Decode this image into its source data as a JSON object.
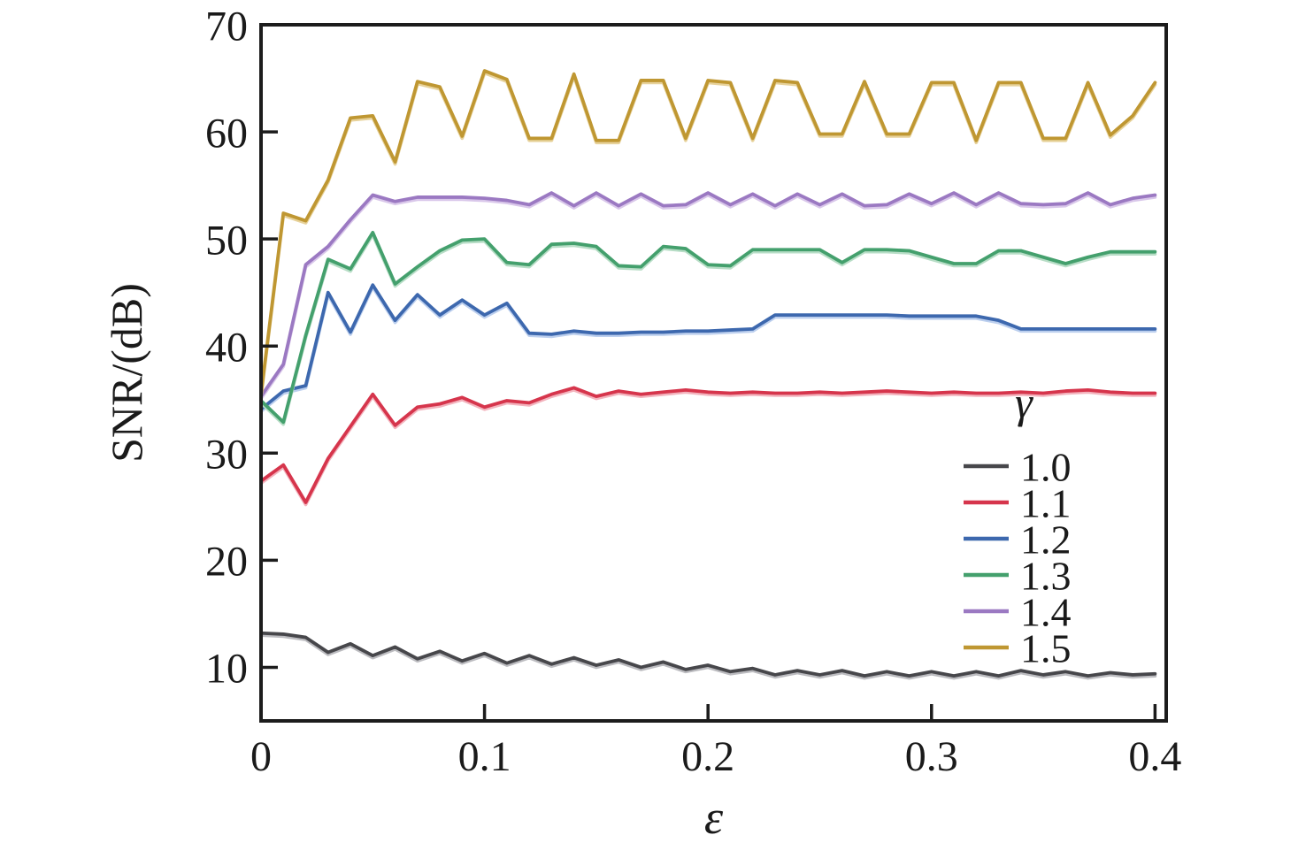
{
  "figure": {
    "background": "#ffffff"
  },
  "chart_data": {
    "type": "line",
    "title": "",
    "xlabel": "ε",
    "ylabel": "SNR/(dB)",
    "xlim": [
      0,
      0.405
    ],
    "ylim": [
      5,
      70
    ],
    "x_ticks": [
      0,
      0.1,
      0.2,
      0.3,
      0.4
    ],
    "x_tick_labels": [
      "0",
      "0.1",
      "0.2",
      "0.3",
      "0.4"
    ],
    "y_ticks": [
      10,
      20,
      30,
      40,
      50,
      60,
      70
    ],
    "y_tick_labels": [
      "10",
      "20",
      "30",
      "40",
      "50",
      "60",
      "70"
    ],
    "grid": false,
    "axis_color": "#1c1c1c",
    "legend_title": "γ",
    "legend_position": "inside-right",
    "x": [
      0,
      0.01,
      0.02,
      0.03,
      0.04,
      0.05,
      0.06,
      0.07,
      0.08,
      0.09,
      0.1,
      0.11,
      0.12,
      0.13,
      0.14,
      0.15,
      0.16,
      0.17,
      0.18,
      0.19,
      0.2,
      0.21,
      0.22,
      0.23,
      0.24,
      0.25,
      0.26,
      0.27,
      0.28,
      0.29,
      0.3,
      0.31,
      0.32,
      0.33,
      0.34,
      0.35,
      0.36,
      0.37,
      0.38,
      0.39,
      0.4
    ],
    "series": [
      {
        "name": "1.0",
        "color": "#47474b",
        "halo": "#bcbcc0",
        "values": [
          13.2,
          13.1,
          12.8,
          11.4,
          12.2,
          11.1,
          11.9,
          10.8,
          11.5,
          10.6,
          11.3,
          10.4,
          11.1,
          10.3,
          10.9,
          10.2,
          10.7,
          10.0,
          10.5,
          9.8,
          10.2,
          9.6,
          9.9,
          9.3,
          9.7,
          9.3,
          9.7,
          9.2,
          9.6,
          9.2,
          9.6,
          9.2,
          9.6,
          9.2,
          9.7,
          9.3,
          9.6,
          9.2,
          9.5,
          9.3,
          9.4
        ]
      },
      {
        "name": "1.1",
        "color": "#d6354c",
        "halo": "#f3b3bd",
        "values": [
          27.4,
          28.9,
          25.4,
          29.5,
          32.5,
          35.5,
          32.6,
          34.3,
          34.6,
          35.2,
          34.3,
          34.9,
          34.7,
          35.5,
          36.1,
          35.3,
          35.8,
          35.5,
          35.7,
          35.9,
          35.7,
          35.6,
          35.7,
          35.6,
          35.6,
          35.7,
          35.6,
          35.7,
          35.8,
          35.7,
          35.6,
          35.7,
          35.6,
          35.6,
          35.7,
          35.6,
          35.8,
          35.9,
          35.7,
          35.6,
          35.6
        ]
      },
      {
        "name": "1.2",
        "color": "#3d68ae",
        "halo": "#bccfee",
        "values": [
          34.1,
          35.8,
          36.3,
          45.0,
          41.3,
          45.7,
          42.4,
          44.8,
          42.9,
          44.3,
          42.9,
          44.0,
          41.2,
          41.1,
          41.4,
          41.2,
          41.2,
          41.3,
          41.3,
          41.4,
          41.4,
          41.5,
          41.6,
          42.9,
          42.9,
          42.9,
          42.9,
          42.9,
          42.9,
          42.8,
          42.8,
          42.8,
          42.8,
          42.4,
          41.6,
          41.6,
          41.6,
          41.6,
          41.6,
          41.6,
          41.6
        ]
      },
      {
        "name": "1.3",
        "color": "#44a06d",
        "halo": "#b7ddc6",
        "values": [
          34.9,
          32.9,
          41.0,
          48.1,
          47.2,
          50.6,
          45.8,
          47.4,
          48.9,
          49.9,
          50.0,
          47.8,
          47.6,
          49.5,
          49.6,
          49.3,
          47.5,
          47.4,
          49.3,
          49.1,
          47.6,
          47.5,
          49.0,
          49.0,
          49.0,
          49.0,
          47.8,
          49.0,
          49.0,
          48.9,
          48.3,
          47.7,
          47.7,
          48.9,
          48.9,
          48.3,
          47.7,
          48.3,
          48.8,
          48.8,
          48.8
        ]
      },
      {
        "name": "1.4",
        "color": "#9b79c2",
        "halo": "#d9c7ea",
        "values": [
          35.3,
          38.3,
          47.6,
          49.3,
          51.8,
          54.1,
          53.5,
          53.9,
          53.9,
          53.9,
          53.8,
          53.6,
          53.2,
          54.3,
          53.1,
          54.3,
          53.1,
          54.2,
          53.1,
          53.2,
          54.3,
          53.2,
          54.2,
          53.1,
          54.2,
          53.2,
          54.2,
          53.1,
          53.2,
          54.2,
          53.3,
          54.3,
          53.2,
          54.3,
          53.3,
          53.2,
          53.3,
          54.3,
          53.2,
          53.8,
          54.1
        ]
      },
      {
        "name": "1.5",
        "color": "#bf9732",
        "halo": "#e7d29b",
        "values": [
          35.5,
          52.4,
          51.7,
          55.5,
          61.3,
          61.5,
          57.2,
          64.7,
          64.2,
          59.6,
          65.7,
          64.9,
          59.4,
          59.4,
          65.4,
          59.2,
          59.2,
          64.8,
          64.8,
          59.4,
          64.8,
          64.6,
          59.4,
          64.8,
          64.6,
          59.8,
          59.8,
          64.7,
          59.8,
          59.8,
          64.6,
          64.6,
          59.2,
          64.6,
          64.6,
          59.4,
          59.4,
          64.6,
          59.7,
          61.5,
          64.6
        ]
      }
    ]
  }
}
